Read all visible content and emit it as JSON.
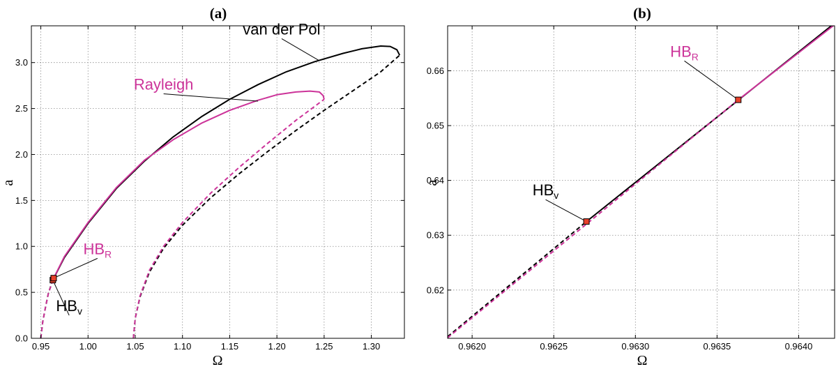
{
  "colors": {
    "vdp": "#000000",
    "rayleigh": "#cc3399",
    "marker": "#e8402a"
  },
  "chart_data": [
    {
      "type": "line",
      "title": "(a)",
      "xlabel": "Ω",
      "ylabel": "a",
      "xlim": [
        0.94,
        1.335
      ],
      "ylim": [
        0.0,
        3.4
      ],
      "xticks": [
        0.95,
        1.0,
        1.05,
        1.1,
        1.15,
        1.2,
        1.25,
        1.3
      ],
      "xtick_labels": [
        "0.95",
        "1.00",
        "1.05",
        "1.10",
        "1.15",
        "1.20",
        "1.25",
        "1.30"
      ],
      "yticks": [
        0.0,
        0.5,
        1.0,
        1.5,
        2.0,
        2.5,
        3.0
      ],
      "ytick_labels": [
        "0.0",
        "0.5",
        "1.0",
        "1.5",
        "2.0",
        "2.5",
        "3.0"
      ],
      "grid": true,
      "series": [
        {
          "name": "van der Pol",
          "color": "#000000",
          "style": "solid",
          "x": [
            0.9627,
            0.975,
            1.0,
            1.03,
            1.06,
            1.09,
            1.12,
            1.15,
            1.18,
            1.21,
            1.24,
            1.27,
            1.29,
            1.31,
            1.32,
            1.327,
            1.33
          ],
          "y": [
            0.633,
            0.88,
            1.25,
            1.63,
            1.93,
            2.19,
            2.41,
            2.6,
            2.76,
            2.9,
            3.01,
            3.1,
            3.15,
            3.18,
            3.175,
            3.14,
            3.08
          ]
        },
        {
          "name": "van der Pol",
          "color": "#000000",
          "style": "dashed",
          "x": [
            0.95,
            0.952,
            0.955,
            0.958,
            0.9627
          ],
          "y": [
            0.0,
            0.18,
            0.34,
            0.49,
            0.633
          ]
        },
        {
          "name": "van der Pol",
          "color": "#000000",
          "style": "dashed",
          "x": [
            1.048,
            1.05,
            1.055,
            1.065,
            1.08,
            1.1,
            1.13,
            1.16,
            1.19,
            1.22,
            1.25,
            1.28,
            1.31,
            1.33
          ],
          "y": [
            0.0,
            0.22,
            0.45,
            0.72,
            0.98,
            1.23,
            1.53,
            1.79,
            2.03,
            2.26,
            2.48,
            2.69,
            2.9,
            3.08
          ]
        },
        {
          "name": "Rayleigh",
          "color": "#cc3399",
          "style": "solid",
          "x": [
            0.9636,
            0.975,
            1.0,
            1.03,
            1.06,
            1.09,
            1.12,
            1.15,
            1.18,
            1.2,
            1.22,
            1.235,
            1.245,
            1.249,
            1.25
          ],
          "y": [
            0.655,
            0.89,
            1.26,
            1.64,
            1.94,
            2.16,
            2.34,
            2.48,
            2.59,
            2.65,
            2.68,
            2.69,
            2.68,
            2.64,
            2.6
          ]
        },
        {
          "name": "Rayleigh",
          "color": "#cc3399",
          "style": "dashed",
          "x": [
            0.95,
            0.952,
            0.955,
            0.958,
            0.9636
          ],
          "y": [
            0.0,
            0.18,
            0.34,
            0.49,
            0.655
          ]
        },
        {
          "name": "Rayleigh",
          "color": "#cc3399",
          "style": "dashed",
          "x": [
            1.048,
            1.05,
            1.055,
            1.065,
            1.08,
            1.1,
            1.13,
            1.16,
            1.19,
            1.22,
            1.25
          ],
          "y": [
            0.0,
            0.22,
            0.46,
            0.74,
            1.0,
            1.26,
            1.58,
            1.86,
            2.12,
            2.37,
            2.6
          ]
        }
      ],
      "markers": [
        {
          "x": 0.9627,
          "y": 0.633,
          "color": "#e8402a"
        },
        {
          "x": 0.9636,
          "y": 0.655,
          "color": "#e8402a"
        }
      ],
      "annotations": [
        {
          "id": "vdp",
          "text": "van der Pol",
          "color": "#000000",
          "tx": 1.205,
          "ty": 3.26,
          "px": 1.245,
          "py": 3.02
        },
        {
          "id": "ray",
          "text": "Rayleigh",
          "color": "#cc3399",
          "tx": 1.08,
          "ty": 2.66,
          "px": 1.18,
          "py": 2.58
        },
        {
          "id": "hbr",
          "text": "HB",
          "sub": "R",
          "color": "#cc3399",
          "tx": 1.01,
          "ty": 0.87,
          "px": 0.9636,
          "py": 0.655
        },
        {
          "id": "hbv",
          "text": "HB",
          "sub": "v",
          "color": "#000000",
          "tx": 0.98,
          "ty": 0.25,
          "px": 0.9627,
          "py": 0.633
        }
      ]
    },
    {
      "type": "line",
      "title": "(b)",
      "xlabel": "Ω",
      "ylabel": "a",
      "xlim": [
        0.96185,
        0.96422
      ],
      "ylim": [
        0.6112,
        0.6682
      ],
      "xticks": [
        0.962,
        0.9625,
        0.963,
        0.9635,
        0.964
      ],
      "xtick_labels": [
        "0.9620",
        "0.9625",
        "0.9630",
        "0.9635",
        "0.9640"
      ],
      "yticks": [
        0.62,
        0.63,
        0.64,
        0.65,
        0.66
      ],
      "ytick_labels": [
        "0.62",
        "0.63",
        "0.64",
        "0.65",
        "0.66"
      ],
      "grid": true,
      "series": [
        {
          "name": "van der Pol",
          "color": "#000000",
          "style": "dashed",
          "x": [
            0.96185,
            0.9627
          ],
          "y": [
            0.6115,
            0.6325
          ]
        },
        {
          "name": "van der Pol",
          "color": "#000000",
          "style": "solid",
          "x": [
            0.9627,
            0.9642
          ],
          "y": [
            0.6325,
            0.6682
          ]
        },
        {
          "name": "Rayleigh",
          "color": "#cc3399",
          "style": "dashed",
          "x": [
            0.96185,
            0.96363
          ],
          "y": [
            0.6113,
            0.6547
          ]
        },
        {
          "name": "Rayleigh",
          "color": "#cc3399",
          "style": "solid",
          "x": [
            0.96363,
            0.96422
          ],
          "y": [
            0.6547,
            0.6684
          ]
        }
      ],
      "markers": [
        {
          "x": 0.9627,
          "y": 0.6325,
          "color": "#e8402a"
        },
        {
          "x": 0.96363,
          "y": 0.6547,
          "color": "#e8402a"
        }
      ],
      "annotations": [
        {
          "id": "hbr",
          "text": "HB",
          "sub": "R",
          "color": "#cc3399",
          "tx": 0.9633,
          "ty": 0.6618,
          "px": 0.96363,
          "py": 0.6547
        },
        {
          "id": "hbv",
          "text": "HB",
          "sub": "v",
          "color": "#000000",
          "tx": 0.96245,
          "ty": 0.6365,
          "px": 0.9627,
          "py": 0.6325
        }
      ]
    }
  ]
}
